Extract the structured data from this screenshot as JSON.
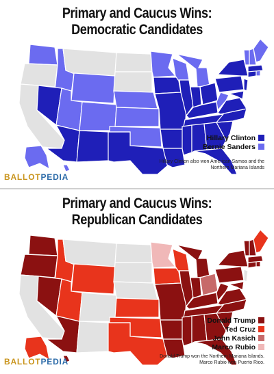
{
  "democratic": {
    "title_line1": "Primary and Caucus Wins:",
    "title_line2": "Democratic Candidates",
    "legend": [
      {
        "label": "Hillary Clinton",
        "color": "#1f1fb8"
      },
      {
        "label": "Bernie Sanders",
        "color": "#6b6bf0"
      }
    ],
    "note": "Hillary Clinton also won American Samoa and the Northern Mariana Islands",
    "logo": {
      "part1": "BALLOT",
      "part2": "PEDIA"
    }
  },
  "republican": {
    "title_line1": "Primary and Caucus Wins:",
    "title_line2": "Republican Candidates",
    "legend": [
      {
        "label": "Donald Trump",
        "color": "#8b1111"
      },
      {
        "label": "Ted Cruz",
        "color": "#e8341c"
      },
      {
        "label": "John Kasich",
        "color": "#c76a6a"
      },
      {
        "label": "Marco Rubio",
        "color": "#f0b8b8"
      }
    ],
    "note": "Donald Trump won the Northern Mariana Islands. Marco Rubio won Puerto Rico.",
    "logo": {
      "part1": "BALLOT",
      "part2": "PEDIA"
    }
  },
  "colors": {
    "no_data": "#e2e2e2",
    "border": "#ffffff"
  }
}
